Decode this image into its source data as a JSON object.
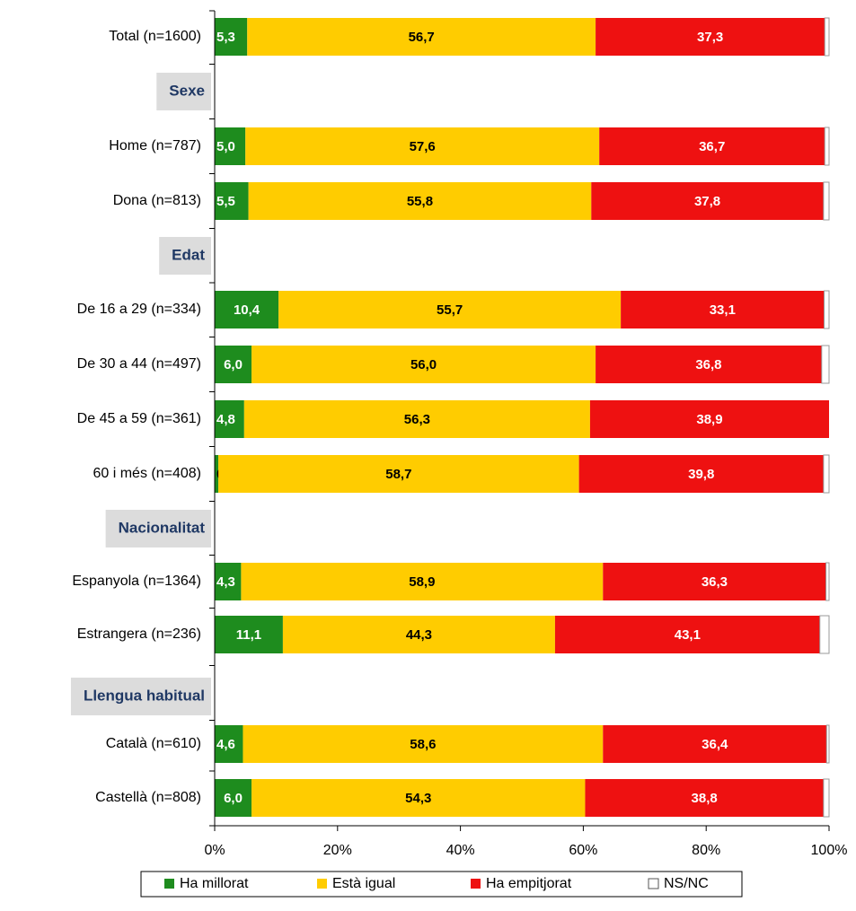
{
  "chart_data": {
    "type": "stacked_bar_horizontal",
    "categories": [
      "Total (n=1600)",
      "Sexe",
      "Home (n=787)",
      "Dona (n=813)",
      "Edat",
      "De 16 a 29 (n=334)",
      "De 30 a 44 (n=497)",
      "De 45 a 59 (n=361)",
      "60 i més (n=408)",
      "Nacionalitat",
      "Espanyola (n=1364)",
      "Estrangera (n=236)",
      "Llengua habitual",
      "Català (n=610)",
      "Castellà (n=808)"
    ],
    "series": [
      {
        "name": "Ha millorat",
        "color": "#1e8c1e",
        "label_color": "#ffffff",
        "values": [
          5.3,
          null,
          5.0,
          5.5,
          null,
          10.4,
          6.0,
          4.8,
          0.6,
          null,
          4.3,
          11.1,
          null,
          4.6,
          6.0
        ],
        "value_labels": [
          "5,3",
          null,
          "5,0",
          "5,5",
          null,
          "10,4",
          "6,0",
          "4,8",
          "0,6",
          null,
          "4,3",
          "11,1",
          null,
          "4,6",
          "6,0"
        ]
      },
      {
        "name": "Està igual",
        "color": "#ffcc00",
        "label_color": "#000000",
        "values": [
          56.7,
          null,
          57.6,
          55.8,
          null,
          55.7,
          56.0,
          56.3,
          58.7,
          null,
          58.9,
          44.3,
          null,
          58.6,
          54.3
        ],
        "value_labels": [
          "56,7",
          null,
          "57,6",
          "55,8",
          null,
          "55,7",
          "56,0",
          "56,3",
          "58,7",
          null,
          "58,9",
          "44,3",
          null,
          "58,6",
          "54,3"
        ]
      },
      {
        "name": "Ha empitjorat",
        "color": "#ee1111",
        "label_color": "#ffffff",
        "values": [
          37.3,
          null,
          36.7,
          37.8,
          null,
          33.1,
          36.8,
          38.9,
          39.8,
          null,
          36.3,
          43.1,
          null,
          36.4,
          38.8
        ],
        "value_labels": [
          "37,3",
          null,
          "36,7",
          "37,8",
          null,
          "33,1",
          "36,8",
          "38,9",
          "39,8",
          null,
          "36,3",
          "43,1",
          null,
          "36,4",
          "38,8"
        ]
      },
      {
        "name": "NS/NC",
        "color": "#ffffff",
        "values": [
          0.7,
          null,
          0.7,
          0.9,
          null,
          0.8,
          1.2,
          0.0,
          0.9,
          null,
          0.5,
          1.5,
          null,
          0.4,
          0.9
        ]
      }
    ],
    "xlim": [
      0,
      100
    ],
    "xticks": [
      {
        "value": 0,
        "label": "0%"
      },
      {
        "value": 20,
        "label": "20%"
      },
      {
        "value": 40,
        "label": "40%"
      },
      {
        "value": 60,
        "label": "60%"
      },
      {
        "value": 80,
        "label": "80%"
      },
      {
        "value": 100,
        "label": "100%"
      }
    ],
    "legend": "bottom"
  }
}
